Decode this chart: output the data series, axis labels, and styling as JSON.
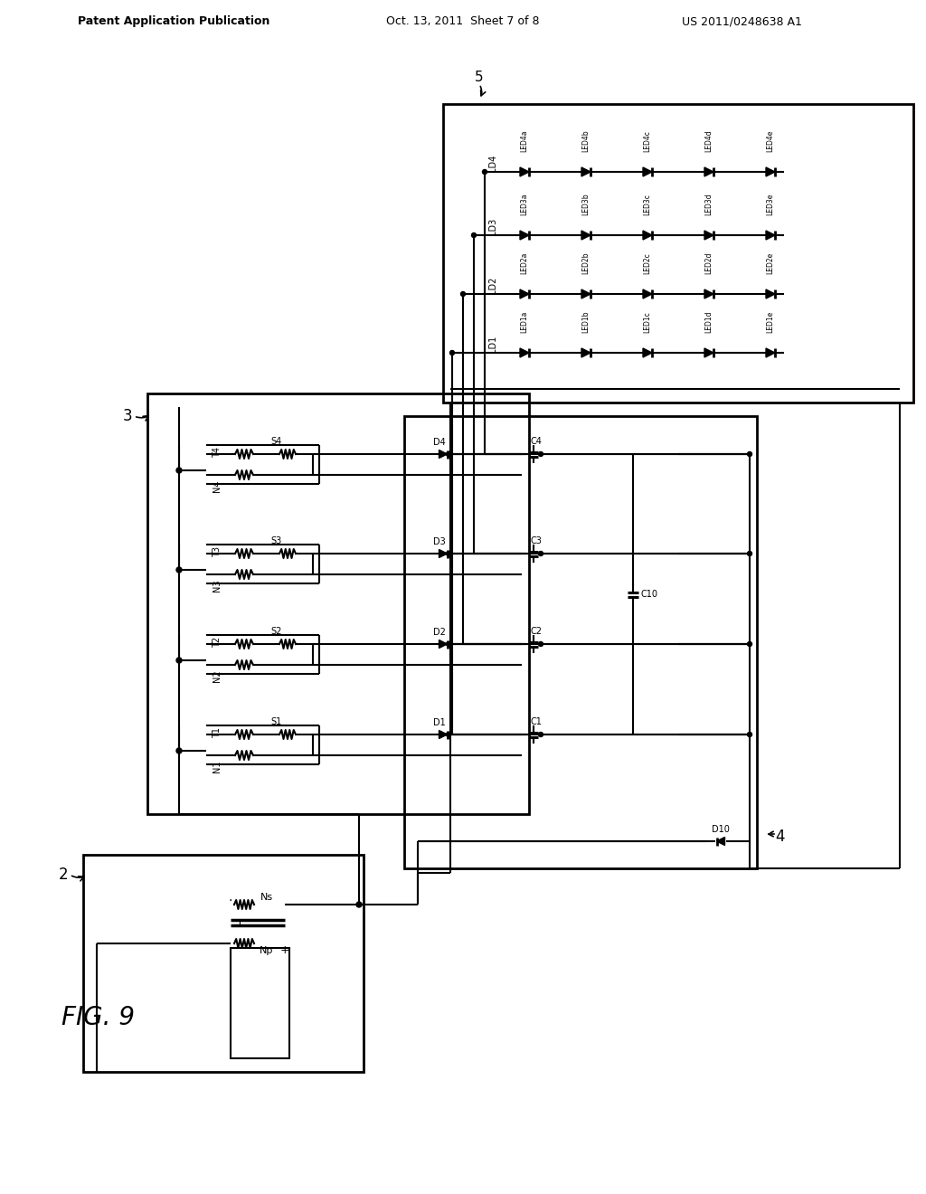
{
  "header_left": "Patent Application Publication",
  "header_mid": "Oct. 13, 2011  Sheet 7 of 8",
  "header_right": "US 2011/0248638 A1",
  "fig_label": "FIG. 9",
  "bg": "#ffffff",
  "box2_label": "2",
  "box3_label": "3",
  "box4_label": "4",
  "box5_label": "5",
  "tap_T": [
    "T1",
    "T2",
    "T3",
    "T4"
  ],
  "tap_N": [
    "N1",
    "N2",
    "N3",
    "N4"
  ],
  "tap_S": [
    "S1",
    "S2",
    "S3",
    "S4"
  ],
  "diodes": [
    "D1",
    "D2",
    "D3",
    "D4"
  ],
  "caps": [
    "C1",
    "C2",
    "C3",
    "C4"
  ],
  "ld_labels": [
    "LD1",
    "LD2",
    "LD3",
    "LD4"
  ],
  "led_rows": [
    [
      "LED1a",
      "LED1b",
      "LED1c",
      "LED1d",
      "LED1e"
    ],
    [
      "LED2a",
      "LED2b",
      "LED2c",
      "LED2d",
      "LED2e"
    ],
    [
      "LED3a",
      "LED3b",
      "LED3c",
      "LED3d",
      "LED3e"
    ],
    [
      "LED4a",
      "LED4b",
      "LED4c",
      "LED4d",
      "LED4e"
    ]
  ]
}
